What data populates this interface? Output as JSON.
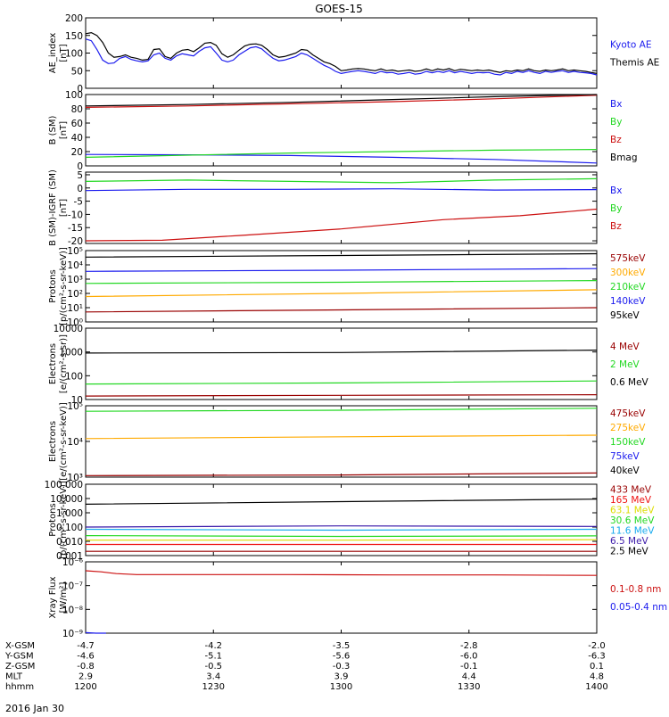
{
  "title": "GOES-15",
  "date": "2016 Jan 30",
  "colors": {
    "black": "#000000",
    "blue": "#1a1aee",
    "green": "#22d822",
    "red": "#cc1010",
    "darkred": "#990000",
    "orange": "#ffaa00",
    "cyan": "#18aaee",
    "yellow": "#dddd00",
    "purple": "#3b1aaa",
    "brightred": "#ee1111"
  },
  "chart_data": [
    {
      "type": "line",
      "ylabel": [
        "AE_index",
        "[nT]"
      ],
      "ylim": [
        0,
        200
      ],
      "yticks": [
        0,
        50,
        100,
        150,
        200
      ],
      "legend": [
        {
          "name": "Kyoto AE",
          "color": "blue"
        },
        {
          "name": "Themis AE",
          "color": "black"
        }
      ],
      "series": [
        {
          "name": "Themis AE",
          "color": "black",
          "values": [
            155,
            158,
            150,
            130,
            100,
            88,
            90,
            95,
            88,
            85,
            80,
            82,
            110,
            112,
            90,
            85,
            100,
            108,
            110,
            104,
            115,
            128,
            130,
            122,
            98,
            88,
            95,
            108,
            120,
            125,
            126,
            122,
            110,
            95,
            88,
            90,
            95,
            100,
            110,
            108,
            95,
            85,
            75,
            70,
            62,
            50,
            52,
            55,
            56,
            55,
            52,
            50,
            55,
            50,
            52,
            48,
            50,
            52,
            48,
            50,
            55,
            50,
            55,
            52,
            56,
            50,
            54,
            52,
            50,
            52,
            50,
            52,
            48,
            45,
            50,
            48,
            52,
            50,
            55,
            50,
            48,
            52,
            50,
            52,
            55,
            50,
            52,
            50,
            48,
            45,
            42
          ]
        },
        {
          "name": "Kyoto AE",
          "color": "blue",
          "values": [
            140,
            135,
            110,
            80,
            70,
            72,
            85,
            90,
            82,
            78,
            75,
            78,
            95,
            100,
            85,
            80,
            92,
            98,
            95,
            92,
            105,
            115,
            118,
            100,
            80,
            75,
            80,
            95,
            105,
            115,
            118,
            112,
            98,
            85,
            78,
            80,
            85,
            90,
            100,
            95,
            85,
            75,
            65,
            58,
            48,
            42,
            45,
            48,
            50,
            48,
            45,
            42,
            48,
            44,
            45,
            40,
            42,
            45,
            40,
            42,
            48,
            44,
            48,
            45,
            50,
            44,
            48,
            45,
            42,
            45,
            44,
            45,
            40,
            38,
            45,
            42,
            48,
            45,
            50,
            45,
            42,
            48,
            45,
            48,
            50,
            45,
            48,
            45,
            44,
            42,
            38
          ]
        }
      ]
    },
    {
      "type": "line",
      "ylabel": [
        "B (SM)",
        "[nT]"
      ],
      "ylim": [
        0,
        100
      ],
      "yticks": [
        0,
        20,
        40,
        60,
        80,
        100
      ],
      "legend": [
        {
          "name": "Bx",
          "color": "blue"
        },
        {
          "name": "By",
          "color": "green"
        },
        {
          "name": "Bz",
          "color": "red"
        },
        {
          "name": "Bmag",
          "color": "black"
        }
      ],
      "series": [
        {
          "name": "Bx",
          "color": "blue",
          "x": [
            0,
            20,
            40,
            60,
            80,
            100
          ],
          "values": [
            16,
            15.5,
            14.5,
            12,
            9,
            4
          ]
        },
        {
          "name": "By",
          "color": "green",
          "x": [
            0,
            20,
            40,
            60,
            80,
            100
          ],
          "values": [
            12,
            15,
            18,
            20,
            22,
            23
          ]
        },
        {
          "name": "Bz",
          "color": "red",
          "x": [
            0,
            20,
            40,
            60,
            80,
            100
          ],
          "values": [
            82,
            84,
            87,
            90,
            94,
            99
          ]
        },
        {
          "name": "Bmag",
          "color": "black",
          "x": [
            0,
            20,
            40,
            60,
            80,
            100
          ],
          "values": [
            84,
            86,
            89,
            93,
            97,
            101
          ]
        }
      ]
    },
    {
      "type": "line",
      "ylabel": [
        "B (SM)-IGRF (SM)",
        "[nT]"
      ],
      "ylim": [
        -21,
        6
      ],
      "yticks": [
        -20,
        -15,
        -10,
        -5,
        0,
        5
      ],
      "legend": [
        {
          "name": "Bx",
          "color": "blue"
        },
        {
          "name": "By",
          "color": "green"
        },
        {
          "name": "Bz",
          "color": "red"
        }
      ],
      "series": [
        {
          "name": "Bx",
          "color": "blue",
          "x": [
            0,
            20,
            40,
            60,
            80,
            100
          ],
          "values": [
            -1,
            -0.5,
            -0.5,
            -0.3,
            -0.8,
            -0.6
          ]
        },
        {
          "name": "By",
          "color": "green",
          "x": [
            0,
            20,
            40,
            60,
            80,
            100
          ],
          "values": [
            2.5,
            3,
            2.5,
            2,
            3,
            3.5
          ]
        },
        {
          "name": "Bz",
          "color": "red",
          "x": [
            0,
            15,
            30,
            50,
            70,
            85,
            100
          ],
          "values": [
            -20,
            -19.8,
            -18,
            -15.5,
            -12,
            -10.5,
            -8
          ]
        }
      ]
    },
    {
      "type": "line",
      "log": true,
      "ylabel": [
        "Protons",
        "[p/(cm²-s-sr-keV)]"
      ],
      "ylim": [
        1,
        100000
      ],
      "yticks": [
        "10⁰",
        "10¹",
        "10²",
        "10³",
        "10⁴",
        "10⁵"
      ],
      "legend": [
        {
          "name": "575keV",
          "color": "darkred"
        },
        {
          "name": "300keV",
          "color": "orange"
        },
        {
          "name": "210keV",
          "color": "green"
        },
        {
          "name": "140keV",
          "color": "blue"
        },
        {
          "name": "95keV",
          "color": "black"
        }
      ],
      "series": [
        {
          "name": "95keV",
          "color": "black",
          "x": [
            0,
            50,
            100
          ],
          "values": [
            35000,
            45000,
            60000
          ]
        },
        {
          "name": "140keV",
          "color": "blue",
          "x": [
            0,
            50,
            100
          ],
          "values": [
            3500,
            4200,
            5500
          ]
        },
        {
          "name": "210keV",
          "color": "green",
          "x": [
            0,
            50,
            100
          ],
          "values": [
            500,
            600,
            800
          ]
        },
        {
          "name": "300keV",
          "color": "orange",
          "x": [
            0,
            50,
            100
          ],
          "values": [
            60,
            100,
            180
          ]
        },
        {
          "name": "575keV",
          "color": "darkred",
          "x": [
            0,
            50,
            100
          ],
          "values": [
            5,
            7,
            10
          ]
        }
      ]
    },
    {
      "type": "line",
      "log": true,
      "ylabel": [
        "Electrons",
        "[e/(cm²-s-sr)]"
      ],
      "ylim": [
        10,
        10000
      ],
      "yticks": [
        "10",
        "100",
        "1000",
        "10000"
      ],
      "legend": [
        {
          "name": "4 MeV",
          "color": "darkred"
        },
        {
          "name": "2 MeV",
          "color": "green"
        },
        {
          "name": "0.6 MeV",
          "color": "black"
        }
      ],
      "series": [
        {
          "name": "0.6 MeV",
          "color": "black",
          "x": [
            0,
            50,
            100
          ],
          "values": [
            900,
            950,
            1200
          ]
        },
        {
          "name": "2 MeV",
          "color": "green",
          "x": [
            0,
            50,
            100
          ],
          "values": [
            45,
            50,
            60
          ]
        },
        {
          "name": "4 MeV",
          "color": "darkred",
          "x": [
            0,
            50,
            100
          ],
          "values": [
            14,
            15,
            16
          ]
        }
      ]
    },
    {
      "type": "line",
      "log": true,
      "ylabel": [
        "Electrons",
        "[e/(cm²-s-sr-keV)]"
      ],
      "ylim": [
        1000,
        100000
      ],
      "yticks": [
        "10³",
        "10⁴",
        "10⁵"
      ],
      "legend": [
        {
          "name": "475keV",
          "color": "darkred"
        },
        {
          "name": "275keV",
          "color": "orange"
        },
        {
          "name": "150keV",
          "color": "green"
        },
        {
          "name": "75keV",
          "color": "blue"
        },
        {
          "name": "40keV",
          "color": "black"
        }
      ],
      "series": [
        {
          "name": "150keV",
          "color": "green",
          "x": [
            0,
            50,
            100
          ],
          "values": [
            70000,
            75000,
            85000
          ]
        },
        {
          "name": "275keV",
          "color": "orange",
          "x": [
            0,
            50,
            100
          ],
          "values": [
            12000,
            13500,
            15000
          ]
        },
        {
          "name": "475keV",
          "color": "darkred",
          "x": [
            0,
            50,
            100
          ],
          "values": [
            1100,
            1150,
            1300
          ]
        }
      ]
    },
    {
      "type": "line",
      "log": true,
      "ylabel": [
        "Protons",
        "[p/(cm²-s-sr-keV)]"
      ],
      "ylim": [
        0.001,
        100
      ],
      "yticks": [
        "0.001",
        "0.010",
        "0.100",
        "1.000",
        "10.000",
        "100.000"
      ],
      "legend": [
        {
          "name": "433 MeV",
          "color": "darkred"
        },
        {
          "name": "165 MeV",
          "color": "brightred"
        },
        {
          "name": "63.1 MeV",
          "color": "yellow"
        },
        {
          "name": "30.6 MeV",
          "color": "green"
        },
        {
          "name": "11.6 MeV",
          "color": "cyan"
        },
        {
          "name": "6.5 MeV",
          "color": "purple"
        },
        {
          "name": "2.5 MeV",
          "color": "black"
        }
      ],
      "series": [
        {
          "name": "2.5 MeV",
          "color": "black",
          "x": [
            0,
            50,
            100
          ],
          "values": [
            4,
            6,
            9
          ]
        },
        {
          "name": "6.5 MeV",
          "color": "purple",
          "x": [
            0,
            50,
            100
          ],
          "values": [
            0.1,
            0.12,
            0.11
          ]
        },
        {
          "name": "11.6 MeV",
          "color": "cyan",
          "x": [
            0,
            50,
            100
          ],
          "values": [
            0.07,
            0.06,
            0.07
          ]
        },
        {
          "name": "30.6 MeV",
          "color": "green",
          "x": [
            0,
            50,
            100
          ],
          "values": [
            0.025,
            0.022,
            0.024
          ]
        },
        {
          "name": "63.1 MeV",
          "color": "yellow",
          "x": [
            0,
            50,
            100
          ],
          "values": [
            0.012,
            0.012,
            0.013
          ]
        },
        {
          "name": "165 MeV",
          "color": "brightred",
          "x": [
            0,
            50,
            100
          ],
          "values": [
            0.006,
            0.006,
            0.006
          ]
        },
        {
          "name": "433 MeV",
          "color": "darkred",
          "x": [
            0,
            50,
            100
          ],
          "values": [
            0.002,
            0.002,
            0.002
          ]
        }
      ]
    },
    {
      "type": "line",
      "log": true,
      "ylabel": [
        "Xray Flux",
        "[W/m²]"
      ],
      "ylim": [
        1e-09,
        1e-06
      ],
      "yticks": [
        "10⁻⁹",
        "10⁻⁸",
        "10⁻⁷",
        "10⁻⁶"
      ],
      "legend": [
        {
          "name": "0.1-0.8 nm",
          "color": "red"
        },
        {
          "name": "0.05-0.4 nm",
          "color": "blue"
        }
      ],
      "series": [
        {
          "name": "0.1-0.8 nm",
          "color": "red",
          "x": [
            0,
            3,
            6,
            10,
            20,
            40,
            60,
            80,
            100
          ],
          "values": [
            4.2e-07,
            3.8e-07,
            3.2e-07,
            2.9e-07,
            2.9e-07,
            2.9e-07,
            2.8e-07,
            2.8e-07,
            2.7e-07
          ]
        },
        {
          "name": "0.05-0.4 nm",
          "color": "blue",
          "x": [
            0,
            2,
            4
          ],
          "values": [
            1.05e-09,
            1e-09,
            1e-09
          ]
        }
      ]
    }
  ],
  "footer": {
    "rows": [
      {
        "label": "X-GSM",
        "values": [
          "-4.7",
          "-4.2",
          "-3.5",
          "-2.8",
          "-2.0"
        ]
      },
      {
        "label": "Y-GSM",
        "values": [
          "-4.6",
          "-5.1",
          "-5.6",
          "-6.0",
          "-6.3"
        ]
      },
      {
        "label": "Z-GSM",
        "values": [
          "-0.8",
          "-0.5",
          "-0.3",
          "-0.1",
          "0.1"
        ]
      },
      {
        "label": "MLT",
        "values": [
          "2.9",
          "3.4",
          "3.9",
          "4.4",
          "4.8"
        ]
      },
      {
        "label": "hhmm",
        "values": [
          "1200",
          "1230",
          "1300",
          "1330",
          "1400"
        ]
      }
    ]
  }
}
